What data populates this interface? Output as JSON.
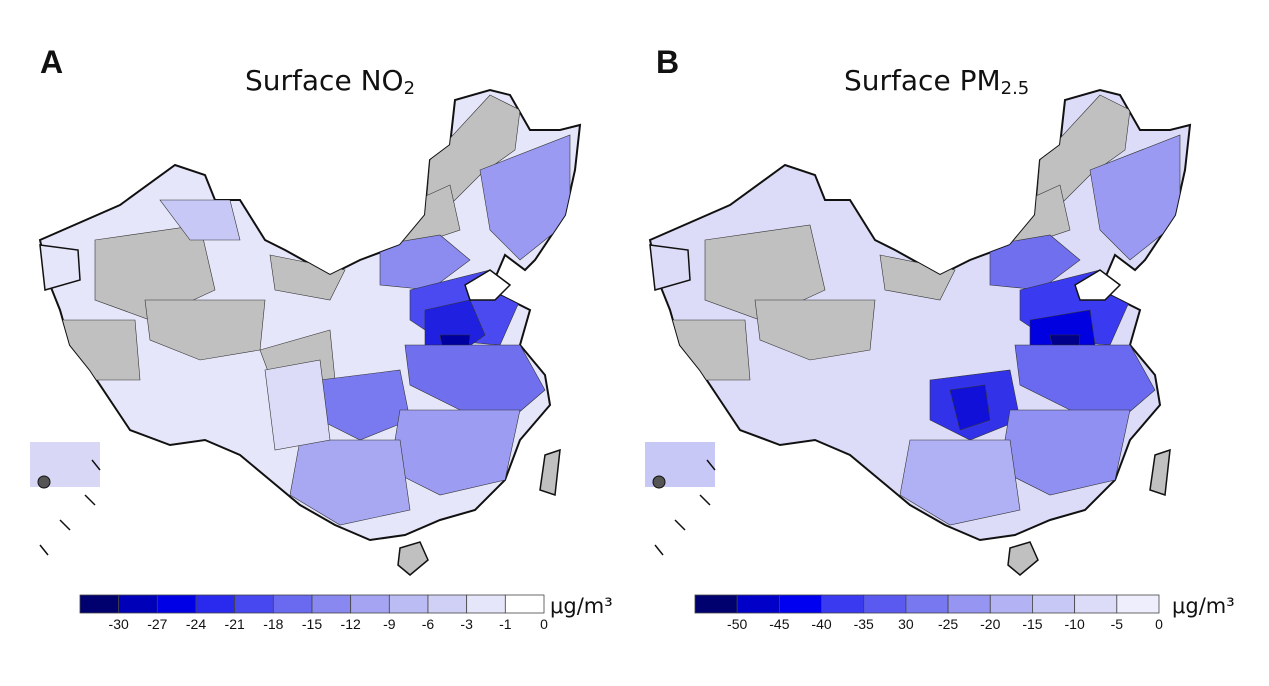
{
  "panels": [
    {
      "letter": "A",
      "title_main": "Surface NO",
      "title_sub": "2",
      "units": "μg/m³",
      "legend_ticks": [
        "-30",
        "-27",
        "-24",
        "-21",
        "-18",
        "-15",
        "-12",
        "-9",
        "-6",
        "-3",
        "-1",
        "0"
      ],
      "legend_colors": [
        "#00006e",
        "#0000b8",
        "#0000e6",
        "#2a2aef",
        "#4848f0",
        "#6a6af0",
        "#8888f0",
        "#a4a4f2",
        "#bcbcf4",
        "#d0d0f6",
        "#e6e6fa",
        "#ffffff"
      ]
    },
    {
      "letter": "B",
      "title_main": "Surface PM",
      "title_sub": "2.5",
      "units": "μg/m³",
      "legend_ticks": [
        "-50",
        "-45",
        "-40",
        "-35",
        "30",
        "-25",
        "-20",
        "-15",
        "-10",
        "-5",
        "0"
      ],
      "legend_colors": [
        "#00006e",
        "#0000c8",
        "#0000f0",
        "#3a3af0",
        "#5a5af0",
        "#7878f0",
        "#9696f2",
        "#b2b2f4",
        "#c8c8f6",
        "#dcdcf8",
        "#eeeefc"
      ]
    }
  ],
  "map_colors": {
    "no_data": "#c0c0c0",
    "border": "#111111"
  }
}
